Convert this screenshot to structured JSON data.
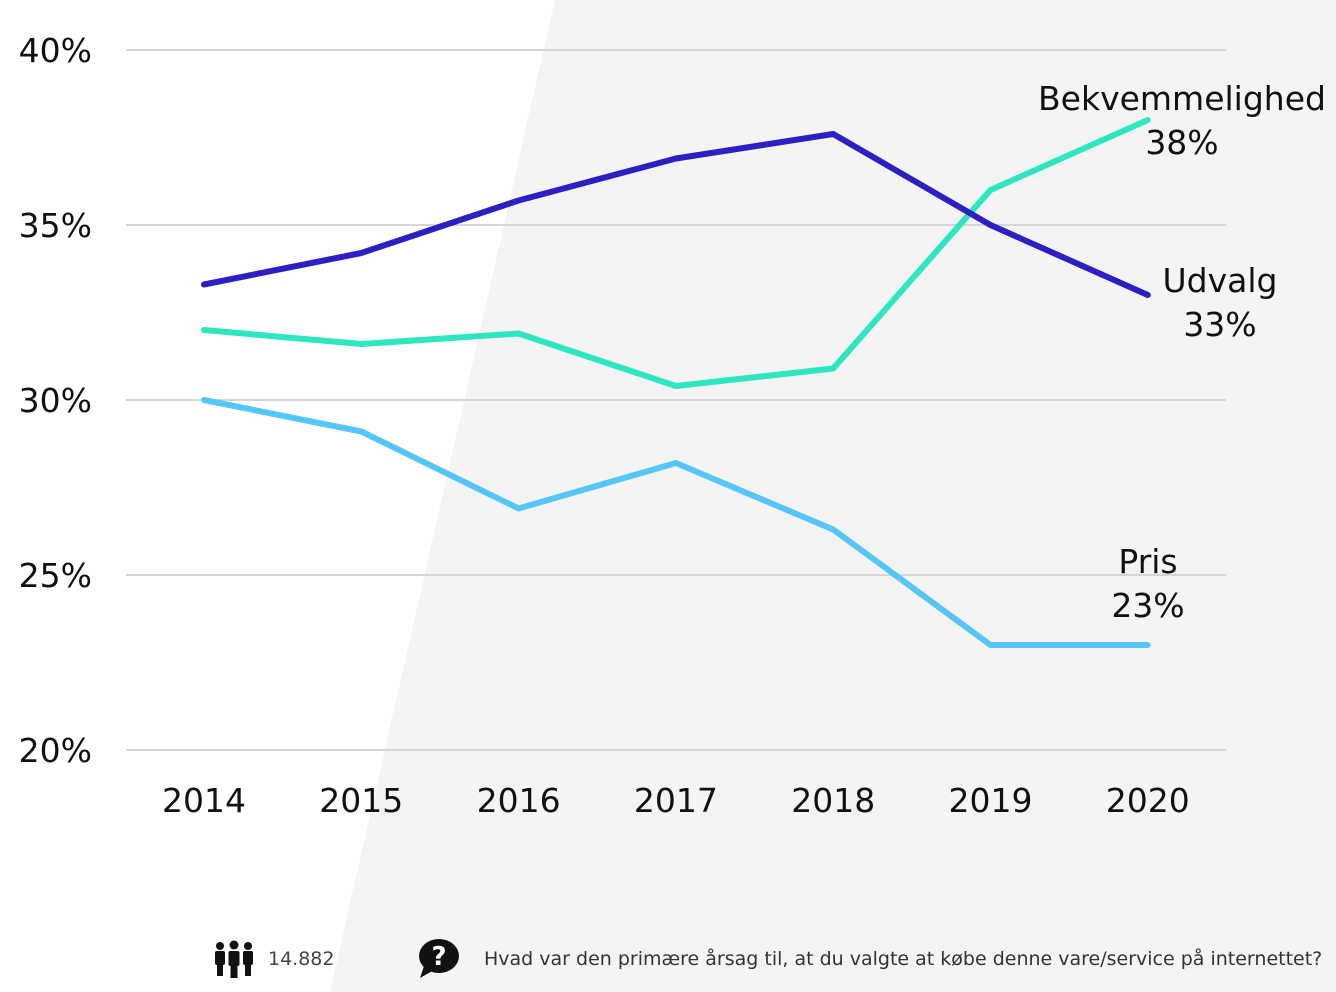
{
  "chart_data": {
    "type": "line",
    "x": [
      "2014",
      "2015",
      "2016",
      "2017",
      "2018",
      "2019",
      "2020"
    ],
    "ylim": [
      20,
      40
    ],
    "yticks": [
      "20%",
      "25%",
      "30%",
      "35%",
      "40%"
    ],
    "grid": true,
    "series": [
      {
        "name": "Bekvemmelighed",
        "values": [
          32.0,
          31.6,
          31.9,
          30.4,
          30.9,
          36.0,
          38.0
        ],
        "color": "#2ee6bf",
        "end_label": "38%"
      },
      {
        "name": "Udvalg",
        "values": [
          33.3,
          34.2,
          35.7,
          36.9,
          37.6,
          35.0,
          33.0
        ],
        "color": "#2c1fc4",
        "end_label": "33%"
      },
      {
        "name": "Pris",
        "values": [
          30.0,
          29.1,
          26.9,
          28.2,
          26.3,
          23.0,
          23.0
        ],
        "color": "#55c6f7",
        "end_label": "23%"
      }
    ]
  },
  "footer": {
    "respondents_icon": "people-icon",
    "respondents": "14.882",
    "question_icon": "question-bubble-icon",
    "question": "Hvad var den primære årsag til, at du valgte at købe denne vare/service på internettet?"
  },
  "colors": {
    "grid": "#d6d6d6",
    "background_light": "#f4f4f4",
    "background_panel": "#ffffff",
    "text": "#111111"
  }
}
